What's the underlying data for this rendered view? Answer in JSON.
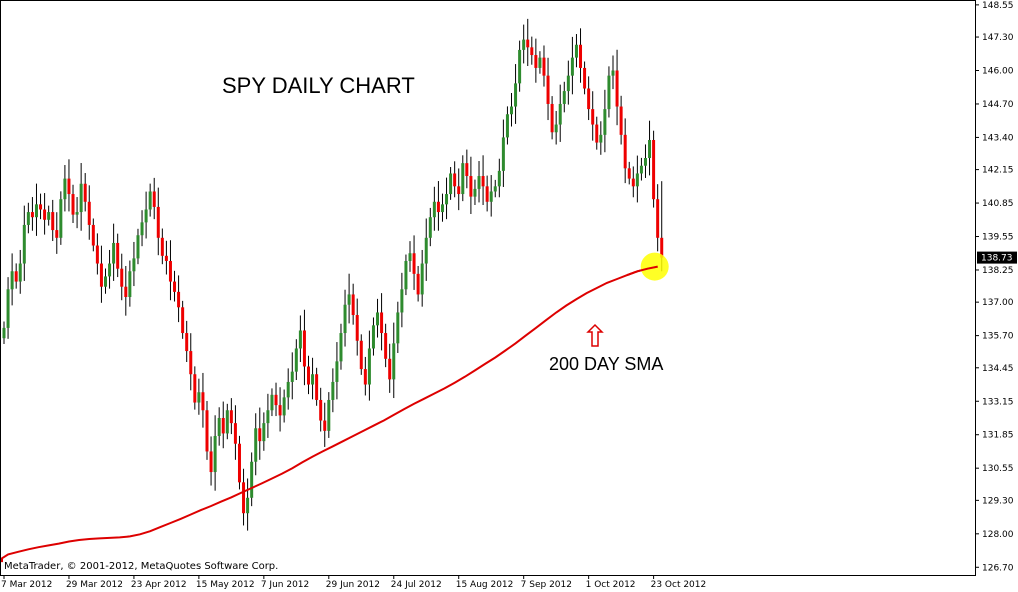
{
  "chart_data": {
    "type": "candlestick",
    "title": "SPY DAILY CHART",
    "annotation": "200 DAY SMA",
    "credit": "MetaTrader, © 2001-2012, MetaQuotes Software Corp.",
    "current_price": "138.73",
    "ylim": [
      126.4,
      148.7
    ],
    "y_ticks": [
      "148.55",
      "147.30",
      "146.00",
      "144.70",
      "143.40",
      "142.15",
      "140.85",
      "139.55",
      "138.25",
      "137.00",
      "135.70",
      "134.45",
      "133.15",
      "131.85",
      "130.55",
      "129.30",
      "128.00",
      "126.70"
    ],
    "x_ticks": [
      "7 Mar 2012",
      "29 Mar 2012",
      "23 Apr 2012",
      "15 May 2012",
      "7 Jun 2012",
      "29 Jun 2012",
      "24 Jul 2012",
      "15 Aug 2012",
      "7 Sep 2012",
      "1 Oct 2012",
      "23 Oct 2012"
    ],
    "x_tick_index": [
      0,
      16,
      32,
      48,
      64,
      80,
      96,
      112,
      128,
      144,
      160
    ],
    "closes": [
      136.0,
      137.5,
      138.2,
      137.8,
      138.5,
      140.0,
      140.5,
      140.3,
      140.8,
      140.6,
      140.2,
      140.5,
      139.8,
      139.5,
      141.0,
      141.8,
      141.2,
      140.4,
      140.5,
      141.6,
      140.9,
      140.0,
      139.2,
      138.5,
      137.6,
      138.0,
      138.5,
      139.3,
      138.3,
      137.6,
      137.2,
      138.2,
      138.7,
      139.6,
      140.1,
      140.6,
      141.3,
      140.7,
      139.5,
      138.8,
      138.6,
      137.8,
      137.4,
      136.8,
      135.8,
      135.1,
      134.2,
      133.1,
      133.5,
      132.8,
      131.2,
      130.4,
      131.8,
      132.5,
      131.9,
      132.8,
      132.3,
      131.5,
      130.0,
      128.8,
      129.4,
      130.8,
      132.1,
      131.6,
      132.3,
      132.8,
      133.4,
      133.0,
      132.6,
      133.3,
      133.9,
      134.3,
      135.2,
      135.9,
      134.5,
      133.8,
      134.2,
      133.2,
      132.4,
      132.0,
      133.2,
      133.9,
      134.7,
      135.8,
      136.9,
      137.3,
      136.5,
      135.5,
      134.4,
      133.8,
      135.2,
      136.1,
      136.6,
      135.8,
      134.8,
      134.0,
      135.4,
      136.6,
      137.5,
      138.6,
      138.9,
      138.1,
      137.3,
      138.5,
      139.5,
      140.3,
      140.9,
      140.5,
      140.8,
      141.2,
      142.0,
      141.5,
      141.2,
      142.4,
      141.9,
      141.1,
      141.4,
      141.9,
      141.5,
      140.9,
      141.3,
      141.5,
      142.1,
      143.4,
      144.3,
      144.6,
      145.5,
      146.8,
      147.2,
      146.9,
      146.6,
      146.1,
      146.5,
      145.8,
      144.7,
      143.6,
      143.9,
      144.7,
      145.2,
      145.8,
      146.5,
      147.0,
      146.1,
      145.3,
      144.5,
      143.9,
      143.2,
      143.5,
      144.5,
      145.8,
      146.0,
      144.6,
      143.5,
      142.2,
      141.8,
      141.5,
      142.0,
      142.3,
      142.6,
      143.3,
      141.0,
      139.5,
      138.73
    ],
    "sma200": [
      126.9,
      127.05,
      127.2,
      127.3,
      127.4,
      127.48,
      127.55,
      127.62,
      127.7,
      127.76,
      127.8,
      127.82,
      127.84,
      127.86,
      127.9,
      127.98,
      128.1,
      128.26,
      128.42,
      128.58,
      128.75,
      128.92,
      129.08,
      129.25,
      129.42,
      129.6,
      129.78,
      129.96,
      130.15,
      130.34,
      130.55,
      130.78,
      131.0,
      131.2,
      131.4,
      131.6,
      131.8,
      132.0,
      132.2,
      132.4,
      132.62,
      132.84,
      133.05,
      133.25,
      133.45,
      133.65,
      133.87,
      134.1,
      134.35,
      134.6,
      134.85,
      135.12,
      135.4,
      135.7,
      136.0,
      136.3,
      136.6,
      136.87,
      137.12,
      137.35,
      137.55,
      137.75,
      137.9,
      138.05,
      138.2,
      138.3,
      138.38
    ],
    "last_candle_wick": [
      138.2,
      141.7
    ]
  }
}
